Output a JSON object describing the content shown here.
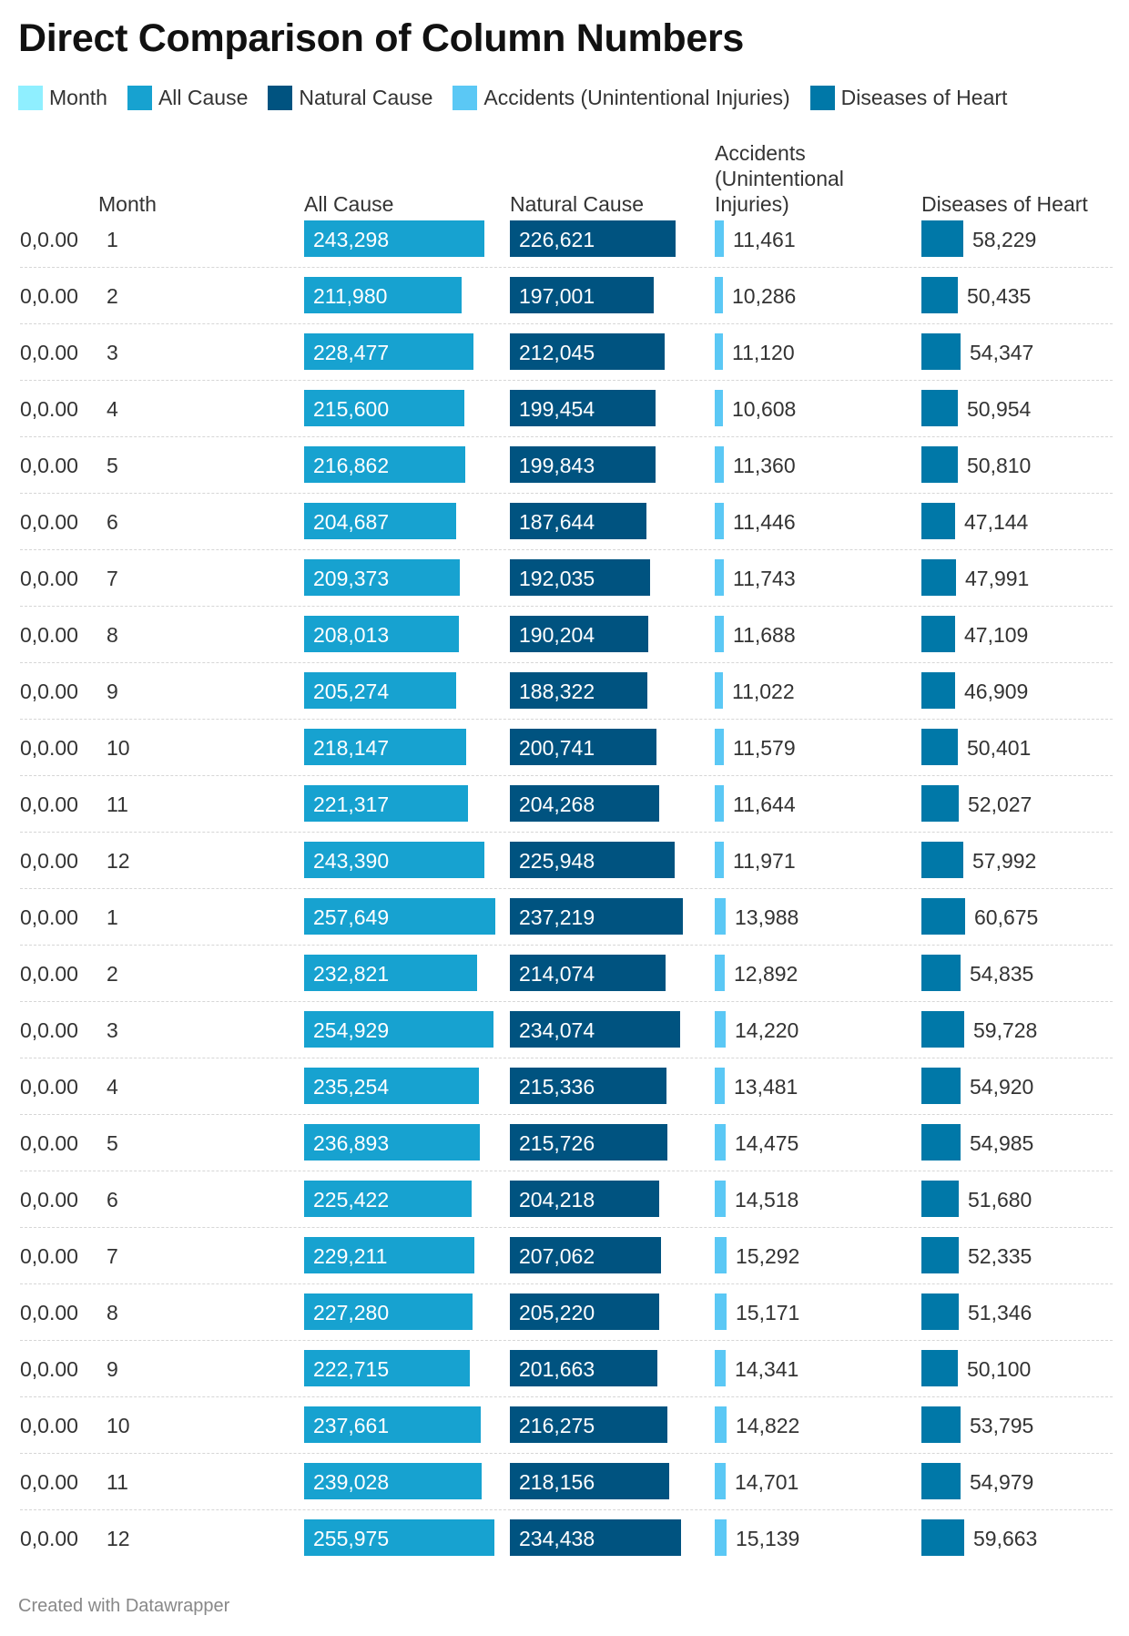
{
  "title": "Direct Comparison of Column Numbers",
  "footer": "Created with Datawrapper",
  "colors": {
    "month": "#8fefff",
    "all_cause": "#17a2d0",
    "natural_cause": "#005380",
    "accidents": "#5bc8f5",
    "diseases_of_heart": "#0078a8"
  },
  "legend": [
    {
      "label": "Month",
      "color": "#8fefff"
    },
    {
      "label": "All Cause",
      "color": "#17a2d0"
    },
    {
      "label": "Natural Cause",
      "color": "#005380"
    },
    {
      "label": "Accidents (Unintentional Injuries)",
      "color": "#5bc8f5"
    },
    {
      "label": "Diseases of Heart",
      "color": "#0078a8"
    }
  ],
  "chart_data": {
    "type": "table",
    "title": "Direct Comparison of Column Numbers",
    "columns": [
      {
        "key": "month",
        "label": "Month"
      },
      {
        "key": "all_cause",
        "label": "All Cause"
      },
      {
        "key": "natural_cause",
        "label": "Natural Cause"
      },
      {
        "key": "accidents",
        "label": "Accidents (Unintentional Injuries)"
      },
      {
        "key": "diseases_of_heart",
        "label": "Diseases of Heart"
      }
    ],
    "row_prefix": "0,0.00",
    "rows": [
      {
        "month": "1",
        "all_cause": 243298,
        "natural_cause": 226621,
        "accidents": 11461,
        "diseases_of_heart": 58229
      },
      {
        "month": "2",
        "all_cause": 211980,
        "natural_cause": 197001,
        "accidents": 10286,
        "diseases_of_heart": 50435
      },
      {
        "month": "3",
        "all_cause": 228477,
        "natural_cause": 212045,
        "accidents": 11120,
        "diseases_of_heart": 54347
      },
      {
        "month": "4",
        "all_cause": 215600,
        "natural_cause": 199454,
        "accidents": 10608,
        "diseases_of_heart": 50954
      },
      {
        "month": "5",
        "all_cause": 216862,
        "natural_cause": 199843,
        "accidents": 11360,
        "diseases_of_heart": 50810
      },
      {
        "month": "6",
        "all_cause": 204687,
        "natural_cause": 187644,
        "accidents": 11446,
        "diseases_of_heart": 47144
      },
      {
        "month": "7",
        "all_cause": 209373,
        "natural_cause": 192035,
        "accidents": 11743,
        "diseases_of_heart": 47991
      },
      {
        "month": "8",
        "all_cause": 208013,
        "natural_cause": 190204,
        "accidents": 11688,
        "diseases_of_heart": 47109
      },
      {
        "month": "9",
        "all_cause": 205274,
        "natural_cause": 188322,
        "accidents": 11022,
        "diseases_of_heart": 46909
      },
      {
        "month": "10",
        "all_cause": 218147,
        "natural_cause": 200741,
        "accidents": 11579,
        "diseases_of_heart": 50401
      },
      {
        "month": "11",
        "all_cause": 221317,
        "natural_cause": 204268,
        "accidents": 11644,
        "diseases_of_heart": 52027
      },
      {
        "month": "12",
        "all_cause": 243390,
        "natural_cause": 225948,
        "accidents": 11971,
        "diseases_of_heart": 57992
      },
      {
        "month": "1",
        "all_cause": 257649,
        "natural_cause": 237219,
        "accidents": 13988,
        "diseases_of_heart": 60675
      },
      {
        "month": "2",
        "all_cause": 232821,
        "natural_cause": 214074,
        "accidents": 12892,
        "diseases_of_heart": 54835
      },
      {
        "month": "3",
        "all_cause": 254929,
        "natural_cause": 234074,
        "accidents": 14220,
        "diseases_of_heart": 59728
      },
      {
        "month": "4",
        "all_cause": 235254,
        "natural_cause": 215336,
        "accidents": 13481,
        "diseases_of_heart": 54920
      },
      {
        "month": "5",
        "all_cause": 236893,
        "natural_cause": 215726,
        "accidents": 14475,
        "diseases_of_heart": 54985
      },
      {
        "month": "6",
        "all_cause": 225422,
        "natural_cause": 204218,
        "accidents": 14518,
        "diseases_of_heart": 51680
      },
      {
        "month": "7",
        "all_cause": 229211,
        "natural_cause": 207062,
        "accidents": 15292,
        "diseases_of_heart": 52335
      },
      {
        "month": "8",
        "all_cause": 227280,
        "natural_cause": 205220,
        "accidents": 15171,
        "diseases_of_heart": 51346
      },
      {
        "month": "9",
        "all_cause": 222715,
        "natural_cause": 201663,
        "accidents": 14341,
        "diseases_of_heart": 50100
      },
      {
        "month": "10",
        "all_cause": 237661,
        "natural_cause": 216275,
        "accidents": 14822,
        "diseases_of_heart": 53795
      },
      {
        "month": "11",
        "all_cause": 239028,
        "natural_cause": 218156,
        "accidents": 14701,
        "diseases_of_heart": 54979
      },
      {
        "month": "12",
        "all_cause": 255975,
        "natural_cause": 234438,
        "accidents": 15139,
        "diseases_of_heart": 59663
      }
    ]
  }
}
